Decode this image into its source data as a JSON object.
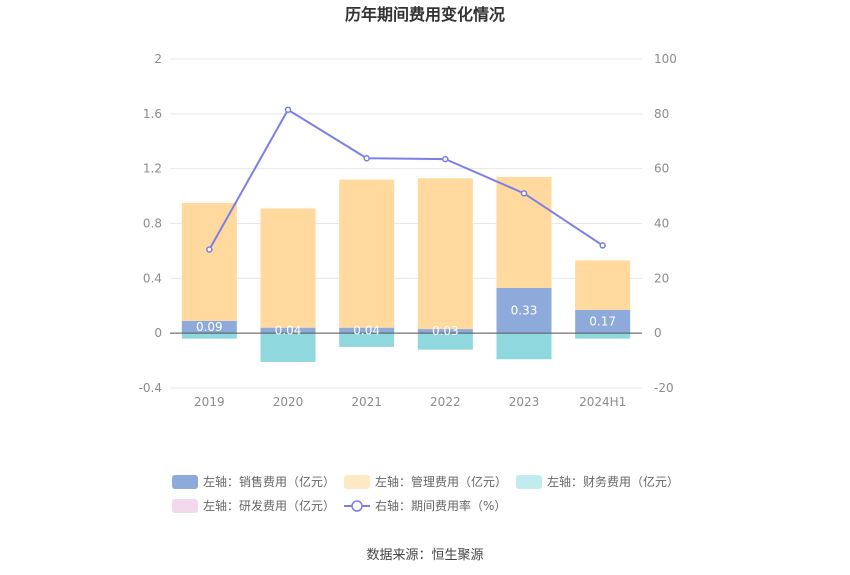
{
  "chart_data": {
    "type": "bar",
    "title": "历年期间费用变化情况",
    "categories": [
      "2019",
      "2020",
      "2021",
      "2022",
      "2023",
      "2024H1"
    ],
    "left_axis": {
      "ylim": [
        -0.4,
        2
      ],
      "ticks": [
        "-0.4",
        "0",
        "0.4",
        "0.8",
        "1.2",
        "1.6",
        "2"
      ]
    },
    "right_axis": {
      "ylim": [
        -20,
        100
      ],
      "ticks": [
        "-20",
        "0",
        "20",
        "40",
        "60",
        "80",
        "100"
      ]
    },
    "series": [
      {
        "name": "左轴：销售费用（亿元）",
        "type": "stacked-bar",
        "color": "#8eaadb",
        "values": [
          0.09,
          0.04,
          0.04,
          0.03,
          0.33,
          0.17
        ],
        "labels": [
          "0.09",
          "0.04",
          "0.04",
          "0.03",
          "0.33",
          "0.17"
        ]
      },
      {
        "name": "左轴：管理费用（亿元）",
        "type": "stacked-bar",
        "color": "#ffd99e",
        "values": [
          0.86,
          0.87,
          1.08,
          1.1,
          0.81,
          0.36
        ]
      },
      {
        "name": "左轴：财务费用（亿元）",
        "type": "stacked-bar",
        "color": "#8ed8de",
        "values": [
          -0.04,
          -0.21,
          -0.1,
          -0.12,
          -0.19,
          -0.04
        ]
      },
      {
        "name": "左轴：研发费用（亿元）",
        "type": "stacked-bar",
        "color": "#f3d9ec",
        "values": [
          0,
          0,
          0,
          0,
          0,
          0
        ]
      },
      {
        "name": "右轴：期间费用率（%）",
        "type": "line",
        "axis": "right",
        "color": "#7b7fe6",
        "values": [
          30.5,
          81.5,
          63.8,
          63.5,
          51,
          32
        ]
      }
    ],
    "legend_placement": "bottom",
    "grid": true
  },
  "legend_colors": {
    "sales": "#8eaadb",
    "admin": "#ffe8c4",
    "finance": "#c0ecee",
    "rnd": "#f3d9ec",
    "rate": "#7b7fe6"
  },
  "source": "数据来源：恒生聚源"
}
